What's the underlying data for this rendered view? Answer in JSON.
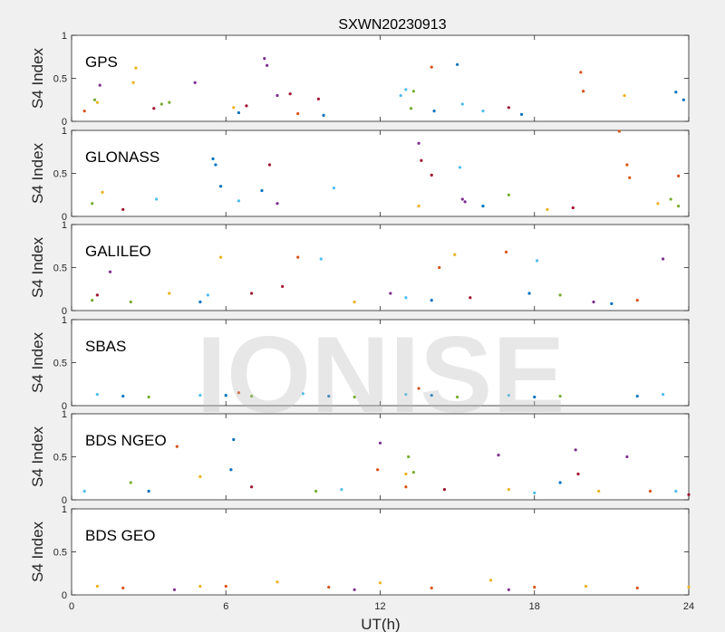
{
  "figure": {
    "title": "SXWN20230913",
    "watermark": "IONISE",
    "xlabel": "UT(h)",
    "ylabel": "S4 Index"
  },
  "chart_data": [
    {
      "type": "scatter",
      "panel_label": "GPS",
      "ylabel": "S4 Index",
      "xlim": [
        0,
        24
      ],
      "ylim": [
        0,
        1
      ],
      "yticks": [
        "0",
        "0.5",
        "1"
      ],
      "xticks": [
        "0",
        "6",
        "12",
        "18",
        "24"
      ],
      "series": [
        {
          "color": "#0072BD",
          "values": [
            [
              14.1,
              0.12
            ],
            [
              15.0,
              0.66
            ],
            [
              23.5,
              0.34
            ],
            [
              23.8,
              0.25
            ],
            [
              17.5,
              0.08
            ],
            [
              6.5,
              0.1
            ],
            [
              9.8,
              0.07
            ]
          ]
        },
        {
          "color": "#D95319",
          "values": [
            [
              14.0,
              0.63
            ],
            [
              19.8,
              0.57
            ],
            [
              19.9,
              0.35
            ],
            [
              0.5,
              0.12
            ],
            [
              8.8,
              0.09
            ]
          ]
        },
        {
          "color": "#EDB120",
          "values": [
            [
              2.5,
              0.62
            ],
            [
              2.4,
              0.45
            ],
            [
              1.0,
              0.22
            ],
            [
              6.3,
              0.16
            ],
            [
              21.5,
              0.3
            ]
          ]
        },
        {
          "color": "#7E2F8E",
          "values": [
            [
              7.5,
              0.73
            ],
            [
              7.6,
              0.65
            ],
            [
              4.8,
              0.45
            ],
            [
              1.1,
              0.42
            ],
            [
              8.0,
              0.3
            ]
          ]
        },
        {
          "color": "#77AC30",
          "values": [
            [
              0.9,
              0.25
            ],
            [
              3.5,
              0.2
            ],
            [
              3.8,
              0.22
            ],
            [
              13.2,
              0.15
            ],
            [
              13.3,
              0.35
            ]
          ]
        },
        {
          "color": "#4DBEEE",
          "values": [
            [
              13.0,
              0.37
            ],
            [
              12.8,
              0.3
            ],
            [
              15.2,
              0.2
            ],
            [
              16.0,
              0.12
            ]
          ]
        },
        {
          "color": "#A2142F",
          "values": [
            [
              3.2,
              0.15
            ],
            [
              6.8,
              0.18
            ],
            [
              8.5,
              0.32
            ],
            [
              9.6,
              0.26
            ],
            [
              17.0,
              0.16
            ]
          ]
        }
      ]
    },
    {
      "type": "scatter",
      "panel_label": "GLONASS",
      "ylabel": "S4 Index",
      "xlim": [
        0,
        24
      ],
      "ylim": [
        0,
        1
      ],
      "yticks": [
        "0",
        "0.5",
        "1"
      ],
      "xticks": [
        "0",
        "6",
        "12",
        "18",
        "24"
      ],
      "series": [
        {
          "color": "#0072BD",
          "values": [
            [
              5.5,
              0.67
            ],
            [
              5.6,
              0.6
            ],
            [
              5.8,
              0.35
            ],
            [
              7.4,
              0.3
            ],
            [
              16.0,
              0.12
            ]
          ]
        },
        {
          "color": "#D95319",
          "values": [
            [
              21.3,
              0.99
            ],
            [
              21.6,
              0.6
            ],
            [
              21.7,
              0.45
            ],
            [
              23.6,
              0.47
            ]
          ]
        },
        {
          "color": "#EDB120",
          "values": [
            [
              1.2,
              0.28
            ],
            [
              13.5,
              0.12
            ],
            [
              22.8,
              0.15
            ],
            [
              18.5,
              0.08
            ]
          ]
        },
        {
          "color": "#7E2F8E",
          "values": [
            [
              15.2,
              0.2
            ],
            [
              15.3,
              0.17
            ],
            [
              13.5,
              0.85
            ],
            [
              8.0,
              0.15
            ]
          ]
        },
        {
          "color": "#77AC30",
          "values": [
            [
              0.8,
              0.15
            ],
            [
              17.0,
              0.25
            ],
            [
              23.3,
              0.2
            ],
            [
              23.6,
              0.12
            ]
          ]
        },
        {
          "color": "#4DBEEE",
          "values": [
            [
              15.1,
              0.57
            ],
            [
              10.2,
              0.33
            ],
            [
              3.3,
              0.2
            ],
            [
              6.5,
              0.18
            ]
          ]
        },
        {
          "color": "#A2142F",
          "values": [
            [
              7.7,
              0.6
            ],
            [
              13.6,
              0.65
            ],
            [
              14.0,
              0.48
            ],
            [
              2.0,
              0.08
            ],
            [
              19.5,
              0.1
            ]
          ]
        }
      ]
    },
    {
      "type": "scatter",
      "panel_label": "GALILEO",
      "ylabel": "S4 Index",
      "xlim": [
        0,
        24
      ],
      "ylim": [
        0,
        1
      ],
      "yticks": [
        "0",
        "0.5",
        "1"
      ],
      "xticks": [
        "0",
        "6",
        "12",
        "18",
        "24"
      ],
      "series": [
        {
          "color": "#0072BD",
          "values": [
            [
              17.8,
              0.2
            ],
            [
              21.0,
              0.08
            ],
            [
              14.0,
              0.12
            ],
            [
              5.0,
              0.1
            ]
          ]
        },
        {
          "color": "#D95319",
          "values": [
            [
              16.9,
              0.68
            ],
            [
              8.8,
              0.62
            ],
            [
              14.3,
              0.5
            ],
            [
              22.0,
              0.12
            ]
          ]
        },
        {
          "color": "#EDB120",
          "values": [
            [
              5.8,
              0.62
            ],
            [
              14.9,
              0.65
            ],
            [
              3.8,
              0.2
            ],
            [
              11.0,
              0.1
            ]
          ]
        },
        {
          "color": "#7E2F8E",
          "values": [
            [
              1.5,
              0.45
            ],
            [
              23.0,
              0.6
            ],
            [
              12.4,
              0.2
            ],
            [
              20.3,
              0.1
            ]
          ]
        },
        {
          "color": "#77AC30",
          "values": [
            [
              0.8,
              0.12
            ],
            [
              19.0,
              0.18
            ],
            [
              2.3,
              0.1
            ]
          ]
        },
        {
          "color": "#4DBEEE",
          "values": [
            [
              9.7,
              0.6
            ],
            [
              18.1,
              0.58
            ],
            [
              5.3,
              0.18
            ],
            [
              13.0,
              0.15
            ]
          ]
        },
        {
          "color": "#A2142F",
          "values": [
            [
              8.2,
              0.28
            ],
            [
              7.0,
              0.2
            ],
            [
              1.0,
              0.18
            ],
            [
              15.5,
              0.15
            ]
          ]
        }
      ]
    },
    {
      "type": "scatter",
      "panel_label": "SBAS",
      "ylabel": "S4 Index",
      "xlim": [
        0,
        24
      ],
      "ylim": [
        0,
        1
      ],
      "yticks": [
        "0",
        "0.5",
        "1"
      ],
      "xticks": [
        "0",
        "6",
        "12",
        "18",
        "24"
      ],
      "series": [
        {
          "color": "#0072BD",
          "values": [
            [
              2.0,
              0.11
            ],
            [
              6.0,
              0.12
            ],
            [
              10.0,
              0.11
            ],
            [
              14.0,
              0.12
            ],
            [
              18.0,
              0.1
            ],
            [
              22.0,
              0.11
            ]
          ]
        },
        {
          "color": "#4DBEEE",
          "values": [
            [
              1.0,
              0.13
            ],
            [
              5.0,
              0.12
            ],
            [
              9.0,
              0.14
            ],
            [
              13.0,
              0.13
            ],
            [
              17.0,
              0.12
            ],
            [
              23.0,
              0.13
            ]
          ]
        },
        {
          "color": "#77AC30",
          "values": [
            [
              3.0,
              0.1
            ],
            [
              7.0,
              0.11
            ],
            [
              11.0,
              0.1
            ],
            [
              15.0,
              0.1
            ],
            [
              19.0,
              0.11
            ]
          ]
        },
        {
          "color": "#D95319",
          "values": [
            [
              13.5,
              0.2
            ],
            [
              6.5,
              0.15
            ]
          ]
        }
      ]
    },
    {
      "type": "scatter",
      "panel_label": "BDS NGEO",
      "ylabel": "S4 Index",
      "xlim": [
        0,
        24
      ],
      "ylim": [
        0,
        1
      ],
      "yticks": [
        "0",
        "0.5",
        "1"
      ],
      "xticks": [
        "0",
        "6",
        "12",
        "18",
        "24"
      ],
      "series": [
        {
          "color": "#0072BD",
          "values": [
            [
              6.3,
              0.7
            ],
            [
              6.2,
              0.35
            ],
            [
              19.0,
              0.2
            ],
            [
              3.0,
              0.1
            ]
          ]
        },
        {
          "color": "#D95319",
          "values": [
            [
              4.1,
              0.62
            ],
            [
              11.9,
              0.35
            ],
            [
              13.0,
              0.15
            ],
            [
              22.5,
              0.1
            ]
          ]
        },
        {
          "color": "#EDB120",
          "values": [
            [
              5.0,
              0.27
            ],
            [
              13.0,
              0.3
            ],
            [
              20.5,
              0.1
            ],
            [
              17.0,
              0.12
            ]
          ]
        },
        {
          "color": "#7E2F8E",
          "values": [
            [
              16.6,
              0.52
            ],
            [
              21.6,
              0.5
            ],
            [
              19.6,
              0.58
            ],
            [
              12.0,
              0.66
            ]
          ]
        },
        {
          "color": "#77AC30",
          "values": [
            [
              13.1,
              0.5
            ],
            [
              13.3,
              0.32
            ],
            [
              2.3,
              0.2
            ],
            [
              9.5,
              0.1
            ]
          ]
        },
        {
          "color": "#4DBEEE",
          "values": [
            [
              0.5,
              0.1
            ],
            [
              10.5,
              0.12
            ],
            [
              18.0,
              0.08
            ],
            [
              23.5,
              0.1
            ]
          ]
        },
        {
          "color": "#A2142F",
          "values": [
            [
              7.0,
              0.15
            ],
            [
              14.5,
              0.12
            ],
            [
              19.7,
              0.3
            ],
            [
              24.0,
              0.06
            ]
          ]
        }
      ]
    },
    {
      "type": "scatter",
      "panel_label": "BDS GEO",
      "ylabel": "S4 Index",
      "xlim": [
        0,
        24
      ],
      "ylim": [
        0,
        1
      ],
      "yticks": [
        "0",
        "0.5",
        "1"
      ],
      "xticks": [
        "0",
        "6",
        "12",
        "18",
        "24"
      ],
      "series": [
        {
          "color": "#D95319",
          "values": [
            [
              2.0,
              0.08
            ],
            [
              6.0,
              0.1
            ],
            [
              10.0,
              0.09
            ],
            [
              14.0,
              0.08
            ],
            [
              18.0,
              0.09
            ],
            [
              22.0,
              0.08
            ]
          ]
        },
        {
          "color": "#EDB120",
          "values": [
            [
              1.0,
              0.1
            ],
            [
              5.0,
              0.1
            ],
            [
              8.0,
              0.15
            ],
            [
              12.0,
              0.14
            ],
            [
              16.3,
              0.17
            ],
            [
              20.0,
              0.1
            ],
            [
              24.0,
              0.09
            ]
          ]
        },
        {
          "color": "#7E2F8E",
          "values": [
            [
              4.0,
              0.06
            ],
            [
              11.0,
              0.06
            ],
            [
              17.0,
              0.06
            ]
          ]
        }
      ]
    }
  ]
}
